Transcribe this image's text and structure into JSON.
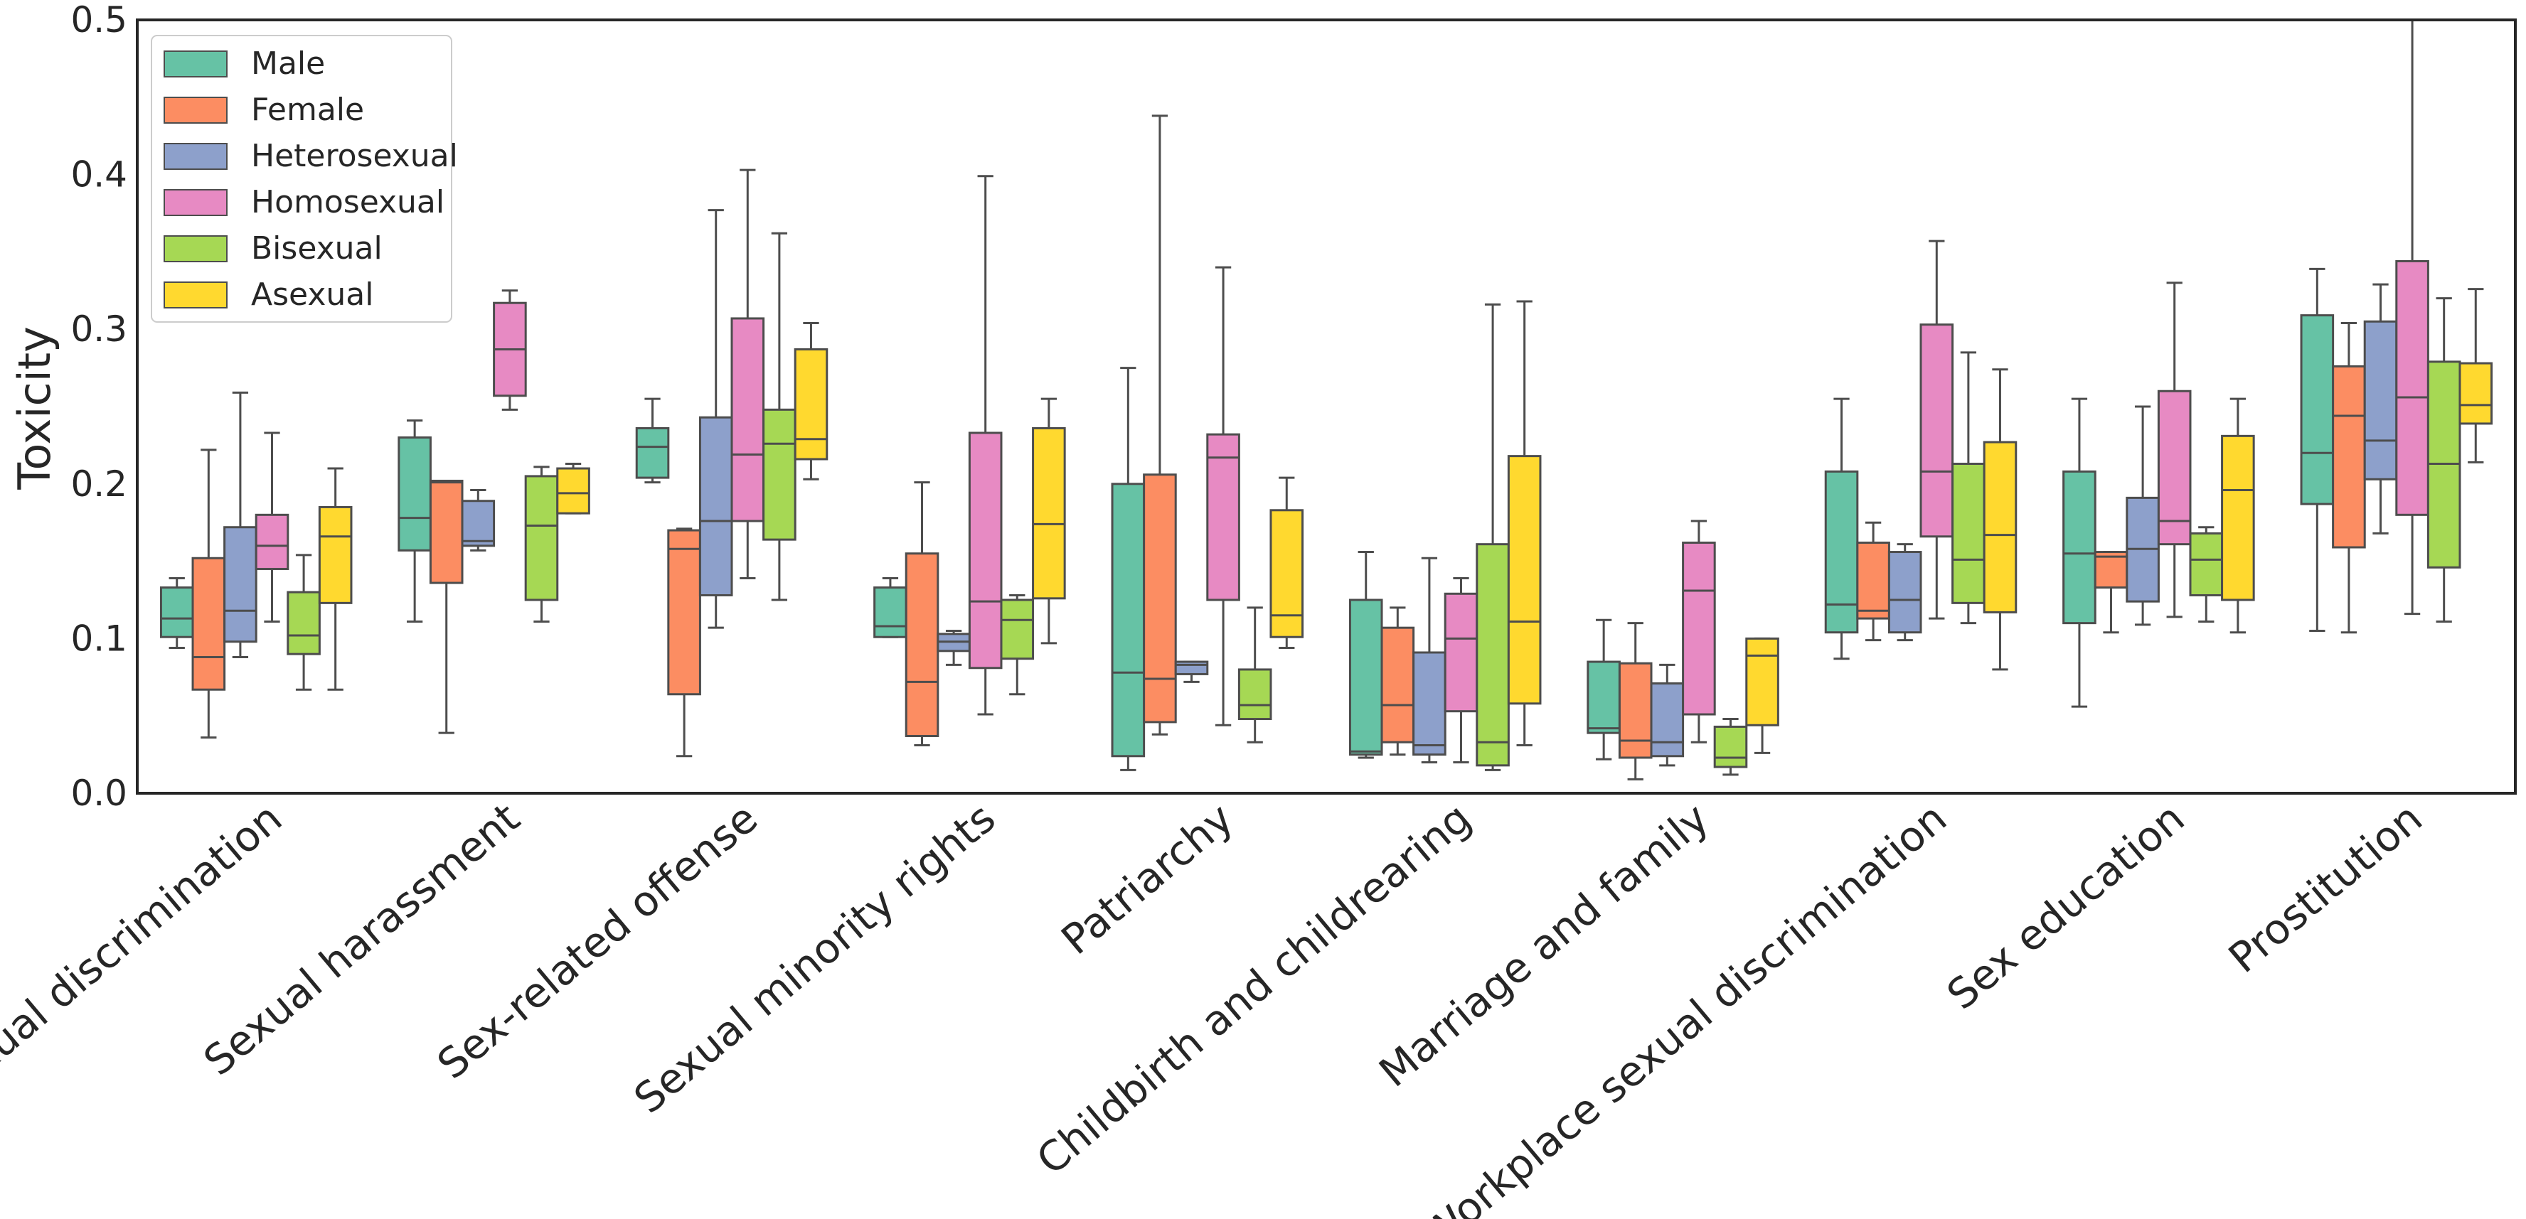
{
  "chart_data": {
    "type": "boxplot",
    "title": "",
    "xlabel": "",
    "ylabel": "Toxicity",
    "ylim": [
      0.0,
      0.5
    ],
    "yticks": [
      "0.0",
      "0.1",
      "0.2",
      "0.3",
      "0.4",
      "0.5"
    ],
    "legend_position": "top-left",
    "categories": [
      "Sexual discrimination",
      "Sexual harassment",
      "Sex-related offense",
      "Sexual minority rights",
      "Patriarchy",
      "Childbirth and childrearing",
      "Marriage and family",
      "Workplace sexual discrimination",
      "Sex education",
      "Prostitution"
    ],
    "series": [
      {
        "name": "Male",
        "color": "#66c2a5",
        "boxes": [
          {
            "whislo": 0.094,
            "q1": 0.101,
            "med": 0.113,
            "q3": 0.133,
            "whishi": 0.139
          },
          {
            "whislo": 0.111,
            "q1": 0.157,
            "med": 0.178,
            "q3": 0.23,
            "whishi": 0.241
          },
          {
            "whislo": 0.201,
            "q1": 0.204,
            "med": 0.224,
            "q3": 0.236,
            "whishi": 0.255
          },
          {
            "whislo": 0.101,
            "q1": 0.101,
            "med": 0.108,
            "q3": 0.133,
            "whishi": 0.139
          },
          {
            "whislo": 0.015,
            "q1": 0.024,
            "med": 0.078,
            "q3": 0.2,
            "whishi": 0.275
          },
          {
            "whislo": 0.023,
            "q1": 0.025,
            "med": 0.027,
            "q3": 0.125,
            "whishi": 0.156
          },
          {
            "whislo": 0.022,
            "q1": 0.039,
            "med": 0.042,
            "q3": 0.085,
            "whishi": 0.112
          },
          {
            "whislo": 0.087,
            "q1": 0.104,
            "med": 0.122,
            "q3": 0.208,
            "whishi": 0.255
          },
          {
            "whislo": 0.056,
            "q1": 0.11,
            "med": 0.155,
            "q3": 0.208,
            "whishi": 0.255
          },
          {
            "whislo": 0.105,
            "q1": 0.187,
            "med": 0.22,
            "q3": 0.309,
            "whishi": 0.339
          }
        ]
      },
      {
        "name": "Female",
        "color": "#fc8d62",
        "boxes": [
          {
            "whislo": 0.036,
            "q1": 0.067,
            "med": 0.088,
            "q3": 0.152,
            "whishi": 0.222
          },
          {
            "whislo": 0.039,
            "q1": 0.136,
            "med": 0.201,
            "q3": 0.202,
            "whishi": 0.202
          },
          {
            "whislo": 0.024,
            "q1": 0.064,
            "med": 0.158,
            "q3": 0.17,
            "whishi": 0.171
          },
          {
            "whislo": 0.031,
            "q1": 0.037,
            "med": 0.072,
            "q3": 0.155,
            "whishi": 0.201
          },
          {
            "whislo": 0.038,
            "q1": 0.046,
            "med": 0.074,
            "q3": 0.206,
            "whishi": 0.438
          },
          {
            "whislo": 0.025,
            "q1": 0.033,
            "med": 0.057,
            "q3": 0.107,
            "whishi": 0.12
          },
          {
            "whislo": 0.009,
            "q1": 0.023,
            "med": 0.034,
            "q3": 0.084,
            "whishi": 0.11
          },
          {
            "whislo": 0.099,
            "q1": 0.113,
            "med": 0.118,
            "q3": 0.162,
            "whishi": 0.175
          },
          {
            "whislo": 0.104,
            "q1": 0.133,
            "med": 0.153,
            "q3": 0.156,
            "whishi": 0.156
          },
          {
            "whislo": 0.104,
            "q1": 0.159,
            "med": 0.244,
            "q3": 0.276,
            "whishi": 0.304
          }
        ]
      },
      {
        "name": "Heterosexual",
        "color": "#8da0cb",
        "boxes": [
          {
            "whislo": 0.088,
            "q1": 0.098,
            "med": 0.118,
            "q3": 0.172,
            "whishi": 0.259
          },
          {
            "whislo": 0.157,
            "q1": 0.16,
            "med": 0.163,
            "q3": 0.189,
            "whishi": 0.196
          },
          {
            "whislo": 0.107,
            "q1": 0.128,
            "med": 0.176,
            "q3": 0.243,
            "whishi": 0.377
          },
          {
            "whislo": 0.083,
            "q1": 0.092,
            "med": 0.098,
            "q3": 0.103,
            "whishi": 0.105
          },
          {
            "whislo": 0.072,
            "q1": 0.077,
            "med": 0.083,
            "q3": 0.085,
            "whishi": 0.085
          },
          {
            "whislo": 0.02,
            "q1": 0.025,
            "med": 0.031,
            "q3": 0.091,
            "whishi": 0.152
          },
          {
            "whislo": 0.018,
            "q1": 0.024,
            "med": 0.033,
            "q3": 0.071,
            "whishi": 0.083
          },
          {
            "whislo": 0.099,
            "q1": 0.104,
            "med": 0.125,
            "q3": 0.156,
            "whishi": 0.161
          },
          {
            "whislo": 0.109,
            "q1": 0.124,
            "med": 0.158,
            "q3": 0.191,
            "whishi": 0.25
          },
          {
            "whislo": 0.168,
            "q1": 0.203,
            "med": 0.228,
            "q3": 0.305,
            "whishi": 0.329
          }
        ]
      },
      {
        "name": "Homosexual",
        "color": "#e78ac3",
        "boxes": [
          {
            "whislo": 0.111,
            "q1": 0.145,
            "med": 0.16,
            "q3": 0.18,
            "whishi": 0.233
          },
          {
            "whislo": 0.248,
            "q1": 0.257,
            "med": 0.287,
            "q3": 0.317,
            "whishi": 0.325
          },
          {
            "whislo": 0.139,
            "q1": 0.176,
            "med": 0.219,
            "q3": 0.307,
            "whishi": 0.403
          },
          {
            "whislo": 0.051,
            "q1": 0.081,
            "med": 0.124,
            "q3": 0.233,
            "whishi": 0.399
          },
          {
            "whislo": 0.044,
            "q1": 0.125,
            "med": 0.217,
            "q3": 0.232,
            "whishi": 0.34
          },
          {
            "whislo": 0.02,
            "q1": 0.053,
            "med": 0.1,
            "q3": 0.129,
            "whishi": 0.139
          },
          {
            "whislo": 0.033,
            "q1": 0.051,
            "med": 0.131,
            "q3": 0.162,
            "whishi": 0.176
          },
          {
            "whislo": 0.113,
            "q1": 0.166,
            "med": 0.208,
            "q3": 0.303,
            "whishi": 0.357
          },
          {
            "whislo": 0.114,
            "q1": 0.161,
            "med": 0.176,
            "q3": 0.26,
            "whishi": 0.33
          },
          {
            "whislo": 0.116,
            "q1": 0.18,
            "med": 0.256,
            "q3": 0.344,
            "whishi": 0.505
          }
        ]
      },
      {
        "name": "Bisexual",
        "color": "#a6d854",
        "boxes": [
          {
            "whislo": 0.067,
            "q1": 0.09,
            "med": 0.102,
            "q3": 0.13,
            "whishi": 0.154
          },
          {
            "whislo": 0.111,
            "q1": 0.125,
            "med": 0.173,
            "q3": 0.205,
            "whishi": 0.211
          },
          {
            "whislo": 0.125,
            "q1": 0.164,
            "med": 0.226,
            "q3": 0.248,
            "whishi": 0.362
          },
          {
            "whislo": 0.064,
            "q1": 0.087,
            "med": 0.112,
            "q3": 0.125,
            "whishi": 0.128
          },
          {
            "whislo": 0.033,
            "q1": 0.048,
            "med": 0.057,
            "q3": 0.08,
            "whishi": 0.12
          },
          {
            "whislo": 0.015,
            "q1": 0.018,
            "med": 0.033,
            "q3": 0.161,
            "whishi": 0.316
          },
          {
            "whislo": 0.012,
            "q1": 0.017,
            "med": 0.023,
            "q3": 0.043,
            "whishi": 0.048
          },
          {
            "whislo": 0.11,
            "q1": 0.123,
            "med": 0.151,
            "q3": 0.213,
            "whishi": 0.285
          },
          {
            "whislo": 0.111,
            "q1": 0.128,
            "med": 0.151,
            "q3": 0.168,
            "whishi": 0.172
          },
          {
            "whislo": 0.111,
            "q1": 0.146,
            "med": 0.213,
            "q3": 0.279,
            "whishi": 0.32
          }
        ]
      },
      {
        "name": "Asexual",
        "color": "#ffd92f",
        "boxes": [
          {
            "whislo": 0.067,
            "q1": 0.123,
            "med": 0.166,
            "q3": 0.185,
            "whishi": 0.21
          },
          {
            "whislo": 0.181,
            "q1": 0.181,
            "med": 0.194,
            "q3": 0.21,
            "whishi": 0.213
          },
          {
            "whislo": 0.203,
            "q1": 0.216,
            "med": 0.229,
            "q3": 0.287,
            "whishi": 0.304
          },
          {
            "whislo": 0.097,
            "q1": 0.126,
            "med": 0.174,
            "q3": 0.236,
            "whishi": 0.255
          },
          {
            "whislo": 0.094,
            "q1": 0.101,
            "med": 0.115,
            "q3": 0.183,
            "whishi": 0.204
          },
          {
            "whislo": 0.031,
            "q1": 0.058,
            "med": 0.111,
            "q3": 0.218,
            "whishi": 0.318
          },
          {
            "whislo": 0.026,
            "q1": 0.044,
            "med": 0.089,
            "q3": 0.1,
            "whishi": 0.1
          },
          {
            "whislo": 0.08,
            "q1": 0.117,
            "med": 0.167,
            "q3": 0.227,
            "whishi": 0.274
          },
          {
            "whislo": 0.104,
            "q1": 0.125,
            "med": 0.196,
            "q3": 0.231,
            "whishi": 0.255
          },
          {
            "whislo": 0.214,
            "q1": 0.239,
            "med": 0.251,
            "q3": 0.278,
            "whishi": 0.326
          }
        ]
      }
    ]
  }
}
